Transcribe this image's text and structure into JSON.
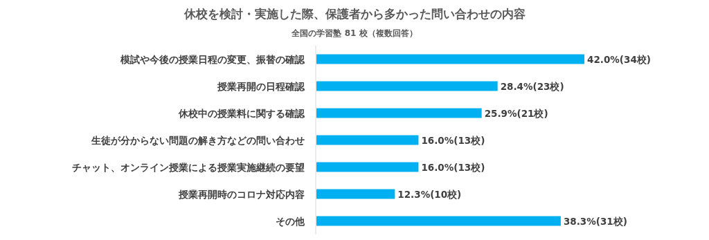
{
  "chart_data": {
    "type": "bar",
    "orientation": "horizontal",
    "title": "休校を検討・実施した際、保護者から多かった問い合わせの内容",
    "subtitle": "全国の学習塾 81 校（複数回答）",
    "categories": [
      "模試や今後の授業日程の変更、振替の確認",
      "授業再開の日程確認",
      "休校中の授業料に関する確認",
      "生徒が分からない問題の解き方などの問い合わせ",
      "チャット、オンライン授業による授業実施継続の要望",
      "授業再開時のコロナ対応内容",
      "その他"
    ],
    "values": [
      42.0,
      28.4,
      25.9,
      16.0,
      16.0,
      12.3,
      38.3
    ],
    "value_labels": [
      "42.0%(34校)",
      "28.4%(23校)",
      "25.9%(21校)",
      "16.0%(13校)",
      "16.0%(13校)",
      "12.3%(10校)",
      "38.3%(31校)"
    ],
    "color": "#00b0f0"
  }
}
